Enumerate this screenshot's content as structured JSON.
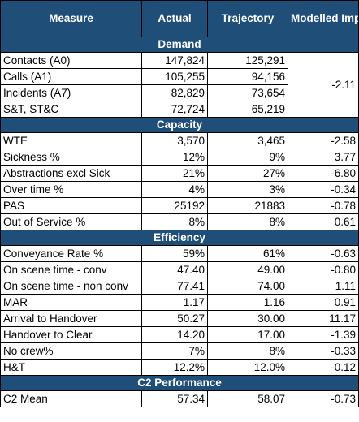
{
  "headers": [
    "Measure",
    "Actual",
    "Trajectory",
    "Modelled Impact"
  ],
  "sections": {
    "demand": "Demand",
    "capacity": "Capacity",
    "efficiency": "Efficiency",
    "c2": "C2 Performance"
  },
  "demand_rows": [
    {
      "measure": "Contacts (A0)",
      "actual": "147,824",
      "trajectory": "125,291"
    },
    {
      "measure": "Calls (A1)",
      "actual": "105,255",
      "trajectory": "94,156"
    },
    {
      "measure": "Incidents (A7)",
      "actual": "82,829",
      "trajectory": "73,654"
    },
    {
      "measure": "S&T, ST&C",
      "actual": "72,724",
      "trajectory": "65,219"
    }
  ],
  "demand_impact": "-2.11",
  "capacity_rows": [
    {
      "measure": "WTE",
      "actual": "3,570",
      "trajectory": "3,465",
      "impact": "-2.58"
    },
    {
      "measure": "Sickness %",
      "actual": "12%",
      "trajectory": "9%",
      "impact": "3.77"
    },
    {
      "measure": "Abstractions excl Sick",
      "actual": "21%",
      "trajectory": "27%",
      "impact": "-6.80"
    },
    {
      "measure": "Over time %",
      "actual": "4%",
      "trajectory": "3%",
      "impact": "-0.34"
    },
    {
      "measure": "PAS",
      "actual": "25192",
      "trajectory": "21883",
      "impact": "-0.78"
    },
    {
      "measure": "Out of Service %",
      "actual": "8%",
      "trajectory": "8%",
      "impact": "0.61"
    }
  ],
  "efficiency_rows": [
    {
      "measure": "Conveyance Rate %",
      "actual": "59%",
      "trajectory": "61%",
      "impact": "-0.63"
    },
    {
      "measure": "On scene time - conv",
      "actual": "47.40",
      "trajectory": "49.00",
      "impact": "-0.80"
    },
    {
      "measure": "On scene time - non conv",
      "actual": "77.41",
      "trajectory": "74.00",
      "impact": "1.11"
    },
    {
      "measure": "MAR",
      "actual": "1.17",
      "trajectory": "1.16",
      "impact": "0.91"
    },
    {
      "measure": "Arrival to Handover",
      "actual": "50.27",
      "trajectory": "30.00",
      "impact": "11.17"
    },
    {
      "measure": "Handover to Clear",
      "actual": "14.20",
      "trajectory": "17.00",
      "impact": "-1.39"
    },
    {
      "measure": "No crew%",
      "actual": "7%",
      "trajectory": "8%",
      "impact": "-0.33"
    },
    {
      "measure": "H&T",
      "actual": "12.2%",
      "trajectory": "12.0%",
      "impact": "-0.12"
    }
  ],
  "c2_rows": [
    {
      "measure": "C2 Mean",
      "actual": "57.34",
      "trajectory": "58.07",
      "impact": "-0.73"
    }
  ]
}
